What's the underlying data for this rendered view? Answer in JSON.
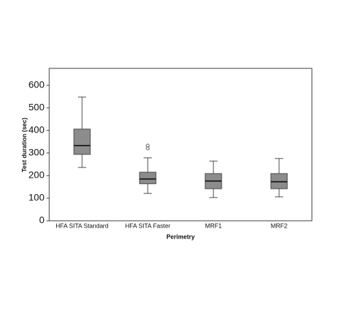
{
  "chart_data": {
    "type": "box",
    "x_label": "Perimetry",
    "y_label": "Test duration (sec)",
    "categories": [
      "HFA SITA Standard",
      "HFA SITA Faster",
      "MRF1",
      "MRF2"
    ],
    "min": [
      236,
      121,
      103,
      106
    ],
    "q1": [
      294,
      164,
      142,
      142
    ],
    "median": [
      333,
      185,
      176,
      173
    ],
    "q3": [
      406,
      215,
      209,
      209
    ],
    "max": [
      548,
      279,
      264,
      276
    ],
    "outliers": [
      [],
      [
        333,
        321
      ],
      [],
      []
    ],
    "color": "#8c8c8c",
    "ylim": [
      0,
      675
    ],
    "yticks": [
      0,
      100,
      200,
      300,
      400,
      500,
      600
    ]
  }
}
